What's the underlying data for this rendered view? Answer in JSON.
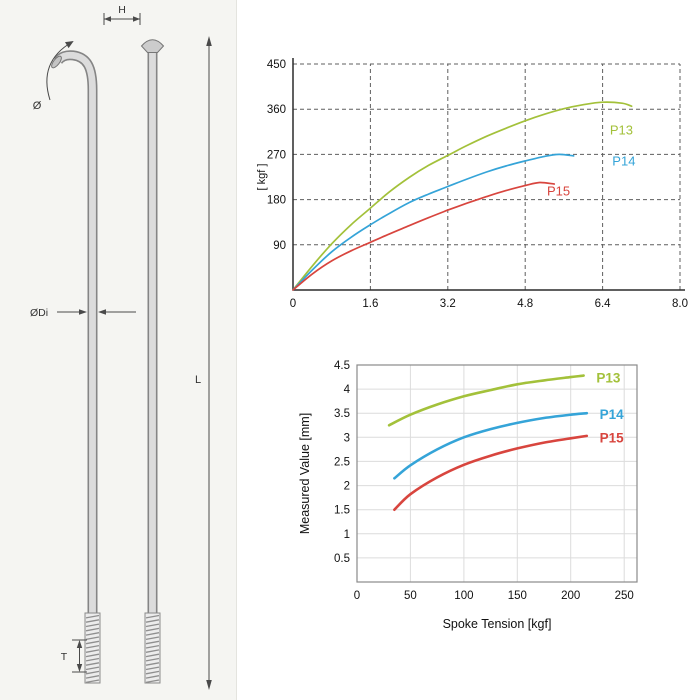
{
  "diagram": {
    "labels": {
      "head_width": "H",
      "bend_angle": "Ø",
      "diameter": "ØDi",
      "length": "L",
      "thread": "T"
    },
    "ink_color": "#4a4a4a",
    "metal_color": "#dcdcdc"
  },
  "chart_data": [
    {
      "id": "pull-force-curve",
      "type": "line",
      "title": "",
      "xlabel": "",
      "ylabel": "[ kgf ]",
      "xlim": [
        0,
        8.0
      ],
      "ylim": [
        0,
        450
      ],
      "x_ticks": [
        "0",
        "1.6",
        "3.2",
        "4.8",
        "6.4",
        "8.0"
      ],
      "y_ticks": [
        "90",
        "180",
        "270",
        "360",
        "450"
      ],
      "grid": "dashed",
      "legend_position": "inline-right",
      "series": [
        {
          "name": "P13",
          "color": "#a3c13a",
          "label_at": [
            6.55,
            318
          ],
          "x": [
            0,
            0.4,
            0.8,
            1.2,
            1.6,
            2,
            2.4,
            2.8,
            3.2,
            3.6,
            4,
            4.4,
            4.8,
            5.2,
            5.6,
            6,
            6.4,
            6.8,
            7
          ],
          "y": [
            0,
            48,
            92,
            130,
            163,
            196,
            224,
            248,
            268,
            288,
            306,
            322,
            337,
            350,
            361,
            369,
            374,
            372,
            366
          ]
        },
        {
          "name": "P14",
          "color": "#35a4d8",
          "label_at": [
            6.6,
            256
          ],
          "x": [
            0,
            0.4,
            0.8,
            1.2,
            1.6,
            2,
            2.4,
            2.8,
            3.2,
            3.6,
            4,
            4.4,
            4.8,
            5.2,
            5.5,
            5.8
          ],
          "y": [
            0,
            40,
            76,
            105,
            130,
            153,
            174,
            191,
            206,
            221,
            235,
            247,
            257,
            266,
            270,
            267
          ]
        },
        {
          "name": "P15",
          "color": "#d8453e",
          "label_at": [
            5.25,
            196
          ],
          "x": [
            0,
            0.4,
            0.8,
            1.2,
            1.6,
            2,
            2.4,
            2.8,
            3.2,
            3.6,
            4,
            4.4,
            4.8,
            5.1,
            5.4
          ],
          "y": [
            0,
            32,
            58,
            78,
            95,
            112,
            128,
            144,
            159,
            173,
            186,
            198,
            208,
            214,
            211
          ]
        }
      ]
    },
    {
      "id": "measured-value-vs-tension",
      "type": "line",
      "title": "",
      "xlabel": "Spoke Tension [kgf]",
      "ylabel": "Measured Value [mm]",
      "xlim": [
        0,
        262
      ],
      "ylim": [
        0,
        4.5
      ],
      "x_ticks": [
        "0",
        "50",
        "100",
        "150",
        "200",
        "250"
      ],
      "y_ticks": [
        "0.5",
        "1",
        "1.5",
        "2",
        "2.5",
        "3",
        "3.5",
        "4",
        "4.5"
      ],
      "grid": "light",
      "legend_position": "inline-right",
      "series": [
        {
          "name": "P13",
          "color": "#a3c13a",
          "label_at": [
            224,
            4.22
          ],
          "x": [
            30,
            50,
            75,
            100,
            125,
            150,
            175,
            200,
            212
          ],
          "y": [
            3.25,
            3.47,
            3.68,
            3.85,
            3.98,
            4.1,
            4.18,
            4.25,
            4.28
          ]
        },
        {
          "name": "P14",
          "color": "#35a4d8",
          "label_at": [
            227,
            3.46
          ],
          "x": [
            35,
            50,
            75,
            100,
            125,
            150,
            175,
            200,
            215
          ],
          "y": [
            2.15,
            2.42,
            2.75,
            3.0,
            3.17,
            3.3,
            3.4,
            3.47,
            3.5
          ]
        },
        {
          "name": "P15",
          "color": "#d8453e",
          "label_at": [
            227,
            2.98
          ],
          "x": [
            35,
            50,
            75,
            100,
            125,
            150,
            175,
            200,
            215
          ],
          "y": [
            1.5,
            1.82,
            2.17,
            2.43,
            2.62,
            2.77,
            2.89,
            2.98,
            3.03
          ]
        }
      ]
    }
  ]
}
